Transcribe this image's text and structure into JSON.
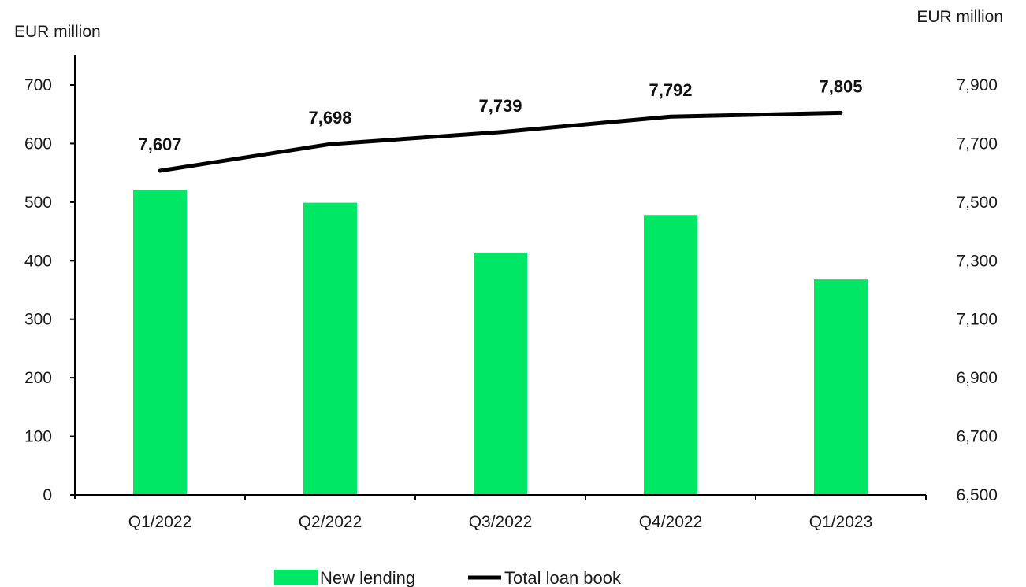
{
  "chart_data": {
    "type": "bar",
    "categories": [
      "Q1/2022",
      "Q2/2022",
      "Q3/2022",
      "Q4/2022",
      "Q1/2023"
    ],
    "series": [
      {
        "name": "New lending",
        "type": "bar",
        "axis": "left",
        "color": "#00e765",
        "values": [
          521,
          499,
          414,
          478,
          368
        ]
      },
      {
        "name": "Total loan book",
        "type": "line",
        "axis": "right",
        "color": "#000000",
        "values": [
          7607,
          7698,
          7739,
          7792,
          7805
        ],
        "labels": [
          "7,607",
          "7,698",
          "7,739",
          "7,792",
          "7,805"
        ]
      }
    ],
    "left_axis": {
      "label": "EUR million",
      "range": [
        0,
        700
      ],
      "ticks": [
        0,
        100,
        200,
        300,
        400,
        500,
        600,
        700
      ],
      "tick_labels": [
        "0",
        "100",
        "200",
        "300",
        "400",
        "500",
        "600",
        "700"
      ]
    },
    "right_axis": {
      "label": "EUR million",
      "range": [
        6500,
        7900
      ],
      "ticks": [
        6500,
        6700,
        6900,
        7100,
        7300,
        7500,
        7700,
        7900
      ],
      "tick_labels": [
        "6,500",
        "6,700",
        "6,900",
        "7,100",
        "7,300",
        "7,500",
        "7,700",
        "7,900"
      ]
    },
    "grid": false,
    "legend": {
      "position": "bottom",
      "entries": [
        "New lending",
        "Total loan book"
      ]
    }
  }
}
